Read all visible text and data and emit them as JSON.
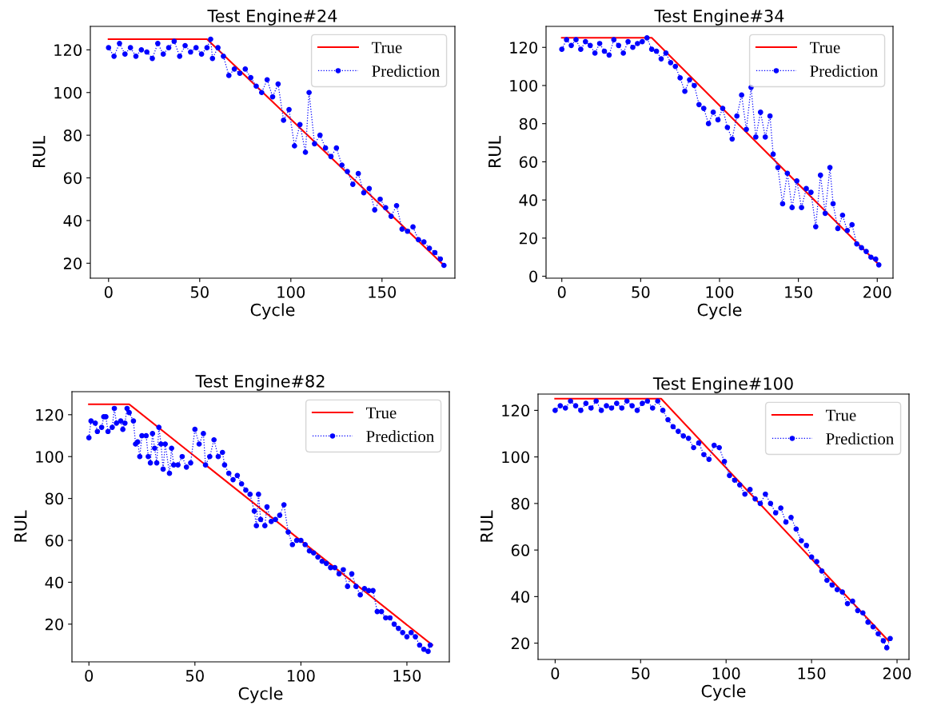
{
  "chart_data": [
    {
      "type": "line",
      "title": "Test Engine#24",
      "xlabel": "Cycle",
      "ylabel": "RUL",
      "xlim": [
        -10,
        190
      ],
      "ylim": [
        13,
        131
      ],
      "xticks": [
        0,
        50,
        100,
        150
      ],
      "yticks": [
        20,
        40,
        60,
        80,
        100,
        120
      ],
      "legend": "top right",
      "series": [
        {
          "name": "True",
          "color": "#ff0000",
          "line_style": "solid",
          "marker": "none",
          "x": [
            0,
            54,
            184
          ],
          "values": [
            125,
            125,
            19
          ]
        },
        {
          "name": "Prediction",
          "color": "#0000ff",
          "line_style": "dotted",
          "marker": "circle",
          "x": [
            0,
            3,
            6,
            9,
            12,
            15,
            18,
            21,
            24,
            27,
            30,
            33,
            36,
            39,
            42,
            45,
            48,
            51,
            54,
            56,
            57,
            60,
            63,
            66,
            69,
            72,
            75,
            78,
            81,
            84,
            87,
            90,
            93,
            96,
            99,
            102,
            105,
            108,
            110,
            113,
            116,
            119,
            122,
            125,
            128,
            131,
            134,
            137,
            140,
            143,
            146,
            149,
            152,
            155,
            158,
            161,
            164,
            167,
            170,
            173,
            176,
            179,
            182,
            184
          ],
          "values": [
            121,
            117,
            123,
            118,
            121,
            117,
            120,
            119,
            116,
            123,
            118,
            121,
            124,
            117,
            122,
            119,
            121,
            118,
            121,
            125,
            116,
            121,
            117,
            108,
            111,
            109,
            111,
            107,
            103,
            100,
            106,
            98,
            104,
            87,
            92,
            75,
            85,
            72,
            100,
            76,
            80,
            74,
            70,
            74,
            66,
            63,
            57,
            62,
            53,
            55,
            45,
            50,
            46,
            42,
            47,
            36,
            35,
            37,
            31,
            30,
            27,
            25,
            22,
            19
          ]
        }
      ]
    },
    {
      "type": "line",
      "title": "Test Engine#34",
      "xlabel": "Cycle",
      "ylabel": "RUL",
      "xlim": [
        -10,
        210
      ],
      "ylim": [
        -1,
        131
      ],
      "xticks": [
        0,
        50,
        100,
        150,
        200
      ],
      "yticks": [
        0,
        20,
        40,
        60,
        80,
        100,
        120
      ],
      "legend": "top right",
      "series": [
        {
          "name": "True",
          "color": "#ff0000",
          "line_style": "solid",
          "marker": "none",
          "x": [
            0,
            57,
            200
          ],
          "values": [
            125,
            125,
            7
          ]
        },
        {
          "name": "Prediction",
          "color": "#0000ff",
          "line_style": "dotted",
          "marker": "circle",
          "x": [
            0,
            3,
            6,
            9,
            12,
            15,
            18,
            21,
            24,
            27,
            30,
            33,
            36,
            39,
            42,
            45,
            48,
            51,
            54,
            57,
            60,
            63,
            66,
            69,
            72,
            75,
            78,
            81,
            84,
            87,
            90,
            93,
            96,
            99,
            102,
            105,
            108,
            111,
            114,
            117,
            120,
            123,
            126,
            129,
            132,
            134,
            137,
            140,
            143,
            146,
            149,
            152,
            155,
            158,
            161,
            164,
            167,
            170,
            172,
            175,
            178,
            181,
            184,
            187,
            190,
            193,
            196,
            199,
            201
          ],
          "values": [
            119,
            124,
            121,
            124,
            119,
            123,
            121,
            117,
            122,
            118,
            116,
            124,
            121,
            117,
            123,
            120,
            122,
            123,
            125,
            119,
            118,
            114,
            117,
            112,
            110,
            104,
            97,
            103,
            100,
            90,
            88,
            80,
            86,
            82,
            88,
            78,
            72,
            84,
            95,
            77,
            99,
            73,
            86,
            73,
            84,
            64,
            57,
            38,
            54,
            36,
            50,
            36,
            46,
            44,
            26,
            53,
            33,
            57,
            38,
            25,
            32,
            24,
            27,
            17,
            15,
            13,
            10,
            9,
            6
          ]
        }
      ]
    },
    {
      "type": "line",
      "title": "Test Engine#82",
      "xlabel": "Cycle",
      "ylabel": "RUL",
      "xlim": [
        -8,
        170
      ],
      "ylim": [
        2,
        131
      ],
      "xticks": [
        0,
        50,
        100,
        150
      ],
      "yticks": [
        20,
        40,
        60,
        80,
        100,
        120
      ],
      "legend": "top right",
      "series": [
        {
          "name": "True",
          "color": "#ff0000",
          "line_style": "solid",
          "marker": "none",
          "x": [
            0,
            19,
            162
          ],
          "values": [
            125,
            125,
            10
          ]
        },
        {
          "name": "Prediction",
          "color": "#0000ff",
          "line_style": "dotted",
          "marker": "circle",
          "x": [
            0,
            1,
            3,
            4,
            6,
            7,
            8,
            9,
            11,
            12,
            13,
            15,
            16,
            17,
            18,
            19,
            21,
            22,
            23,
            24,
            25,
            27,
            28,
            29,
            30,
            31,
            32,
            33,
            34,
            35,
            36,
            38,
            39,
            40,
            42,
            44,
            46,
            48,
            50,
            52,
            54,
            55,
            57,
            59,
            61,
            63,
            64,
            66,
            68,
            70,
            72,
            74,
            76,
            78,
            79,
            80,
            81,
            83,
            84,
            86,
            88,
            90,
            92,
            94,
            96,
            98,
            100,
            102,
            104,
            106,
            108,
            110,
            112,
            114,
            116,
            118,
            120,
            122,
            124,
            126,
            128,
            130,
            132,
            134,
            136,
            138,
            140,
            142,
            144,
            146,
            148,
            150,
            152,
            154,
            156,
            158,
            160,
            161
          ],
          "values": [
            109,
            117,
            116,
            112,
            114,
            119,
            119,
            112,
            114,
            123,
            116,
            117,
            113,
            116,
            123,
            121,
            117,
            106,
            107,
            100,
            110,
            110,
            100,
            97,
            111,
            104,
            97,
            114,
            106,
            94,
            106,
            92,
            104,
            96,
            96,
            100,
            95,
            97,
            113,
            106,
            111,
            96,
            100,
            108,
            100,
            102,
            96,
            92,
            89,
            91,
            87,
            84,
            82,
            74,
            67,
            82,
            70,
            67,
            76,
            69,
            70,
            72,
            77,
            64,
            58,
            60,
            60,
            58,
            55,
            54,
            52,
            50,
            49,
            47,
            47,
            44,
            46,
            38,
            44,
            38,
            34,
            37,
            36,
            36,
            26,
            26,
            23,
            23,
            20,
            18,
            16,
            14,
            16,
            14,
            10,
            8,
            7,
            10
          ]
        }
      ]
    },
    {
      "type": "line",
      "title": "Test Engine#100",
      "xlabel": "Cycle",
      "ylabel": "RUL",
      "xlim": [
        -10,
        207
      ],
      "ylim": [
        13,
        127
      ],
      "xticks": [
        0,
        50,
        100,
        150,
        200
      ],
      "yticks": [
        20,
        40,
        60,
        80,
        100,
        120
      ],
      "legend": "top right",
      "series": [
        {
          "name": "True",
          "color": "#ff0000",
          "line_style": "solid",
          "marker": "none",
          "x": [
            0,
            62,
            195
          ],
          "values": [
            125,
            125,
            21
          ]
        },
        {
          "name": "Prediction",
          "color": "#0000ff",
          "line_style": "dotted",
          "marker": "circle",
          "x": [
            0,
            3,
            6,
            9,
            12,
            15,
            18,
            21,
            24,
            27,
            30,
            33,
            36,
            39,
            42,
            45,
            48,
            51,
            54,
            57,
            60,
            63,
            66,
            69,
            72,
            75,
            78,
            81,
            84,
            87,
            90,
            93,
            96,
            99,
            102,
            105,
            108,
            111,
            114,
            117,
            120,
            123,
            126,
            129,
            132,
            135,
            138,
            141,
            144,
            147,
            150,
            153,
            156,
            159,
            162,
            165,
            168,
            171,
            174,
            177,
            180,
            183,
            186,
            189,
            192,
            194,
            196
          ],
          "values": [
            120,
            122,
            121,
            124,
            122,
            120,
            123,
            121,
            124,
            120,
            122,
            121,
            123,
            121,
            124,
            122,
            120,
            123,
            124,
            121,
            124,
            120,
            116,
            113,
            111,
            109,
            108,
            104,
            106,
            101,
            99,
            105,
            104,
            98,
            92,
            90,
            88,
            84,
            86,
            82,
            80,
            84,
            80,
            76,
            78,
            72,
            74,
            69,
            64,
            62,
            57,
            55,
            51,
            47,
            45,
            43,
            42,
            37,
            38,
            34,
            33,
            29,
            27,
            24,
            21,
            18,
            22
          ]
        }
      ]
    }
  ]
}
